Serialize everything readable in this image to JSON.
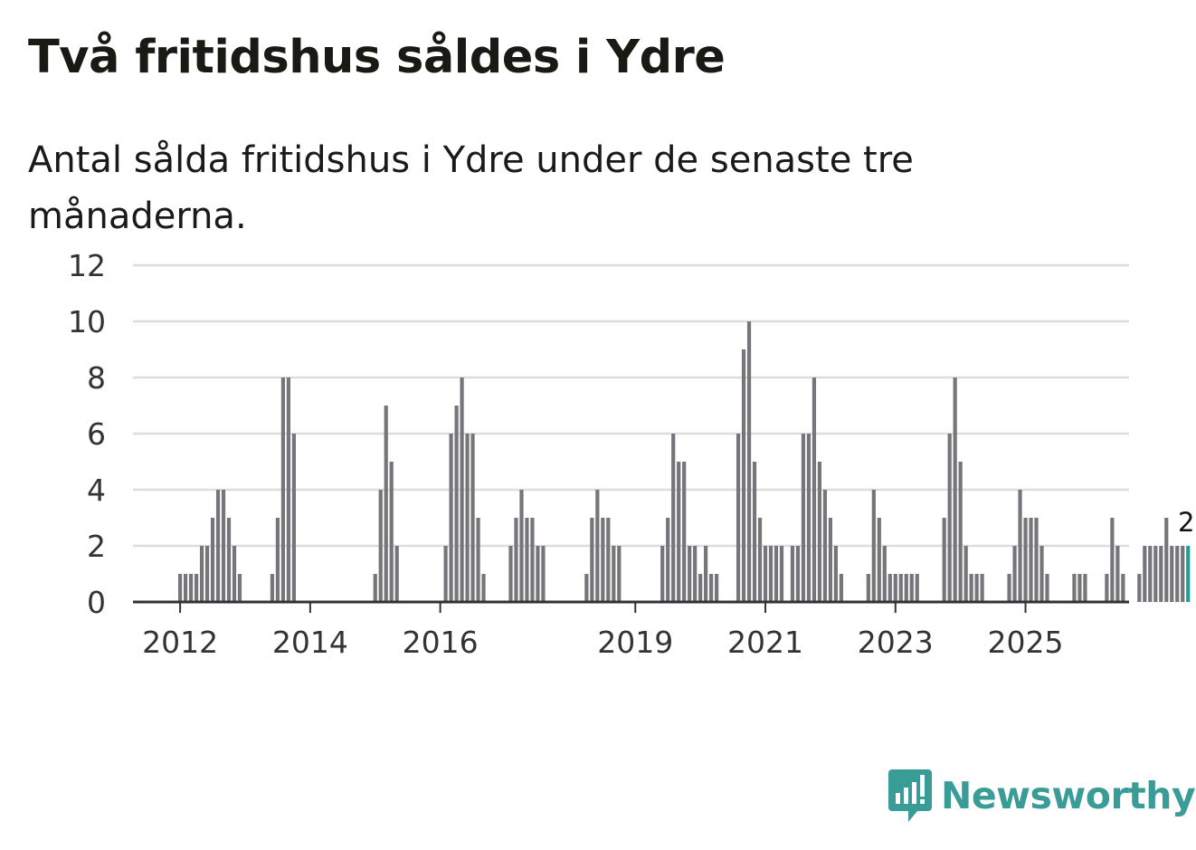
{
  "header": {
    "title": "Två fritidshus såldes i Ydre",
    "subtitle": "Antal sålda fritidshus i Ydre under de senaste tre månaderna."
  },
  "brand": {
    "name": "Newsworthy",
    "color": "#3a9c97",
    "icon": "newsworthy-logo-icon"
  },
  "colors": {
    "bar": "#76767a",
    "highlight": "#1f9f95",
    "grid": "#dddddd",
    "axis": "#333333"
  },
  "chart_data": {
    "type": "bar",
    "x_start": "2012-01",
    "x_interval": "month",
    "values": [
      1,
      1,
      1,
      1,
      2,
      2,
      3,
      4,
      4,
      3,
      2,
      1,
      0,
      0,
      0,
      0,
      0,
      1,
      3,
      8,
      8,
      6,
      0,
      0,
      0,
      0,
      0,
      0,
      0,
      0,
      0,
      0,
      0,
      0,
      0,
      0,
      1,
      4,
      7,
      5,
      2,
      0,
      0,
      0,
      0,
      0,
      0,
      0,
      0,
      2,
      6,
      7,
      8,
      6,
      6,
      3,
      1,
      0,
      0,
      0,
      0,
      2,
      3,
      4,
      3,
      3,
      2,
      2,
      0,
      0,
      0,
      0,
      0,
      0,
      0,
      1,
      3,
      4,
      3,
      3,
      2,
      2,
      0,
      0,
      0,
      0,
      0,
      0,
      0,
      2,
      3,
      6,
      5,
      5,
      2,
      2,
      1,
      2,
      1,
      1,
      0,
      0,
      0,
      6,
      9,
      10,
      5,
      3,
      2,
      2,
      2,
      2,
      0,
      2,
      2,
      6,
      6,
      8,
      5,
      4,
      3,
      2,
      1,
      0,
      0,
      0,
      0,
      1,
      4,
      3,
      2,
      1,
      1,
      1,
      1,
      1,
      1,
      0,
      0,
      0,
      0,
      3,
      6,
      8,
      5,
      2,
      1,
      1,
      1,
      0,
      0,
      0,
      0,
      1,
      2,
      4,
      3,
      3,
      3,
      2,
      1,
      0,
      0,
      0,
      0,
      1,
      1,
      1,
      0,
      0,
      0,
      1,
      3,
      2,
      1,
      0,
      0,
      1,
      2,
      2,
      2,
      2,
      3,
      2,
      2,
      2,
      2
    ],
    "highlight_last": true,
    "last_value_label": "2",
    "x_ticks": [
      {
        "label": "2012",
        "index": 0
      },
      {
        "label": "2014",
        "index": 24
      },
      {
        "label": "2016",
        "index": 48
      },
      {
        "label": "2019",
        "index": 84
      },
      {
        "label": "2021",
        "index": 108
      },
      {
        "label": "2023",
        "index": 132
      },
      {
        "label": "2025",
        "index": 156
      }
    ],
    "y_ticks": [
      "0",
      "2",
      "4",
      "6",
      "8",
      "10",
      "12"
    ],
    "ylim": [
      0,
      12
    ],
    "grid": true,
    "legend": "none"
  }
}
